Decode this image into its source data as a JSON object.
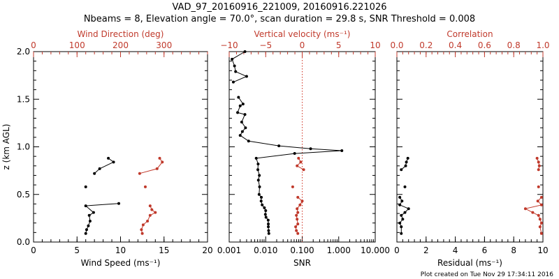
{
  "header": {
    "title": "VAD_97_20160916_221009, 20160916.221026",
    "subtitle": "Nbeams = 8, Elevation angle = 70.0°, scan duration = 29.8 s, SNR Threshold = 0.008"
  },
  "footer": "Plot created on Tue Nov 29 17:34:11 2016",
  "colors": {
    "black": "#000000",
    "red": "#c0392b",
    "dotted": "#d03020"
  },
  "chart_data": [
    {
      "type": "line",
      "title": "",
      "ylabel": "z (km AGL)",
      "ylim": [
        0.0,
        2.0
      ],
      "ytick_labels": [
        "0.0",
        "0.5",
        "1.0",
        "1.5",
        "2.0"
      ],
      "xlabel": "Wind Speed (ms⁻¹)",
      "xlim": [
        0,
        20
      ],
      "xtick_labels": [
        "0",
        "5",
        "10",
        "15",
        "20"
      ],
      "x2label": "Wind Direction (deg)",
      "x2lim": [
        0,
        400
      ],
      "x2tick_labels": [
        "0",
        "100",
        "200",
        "300"
      ],
      "series": [
        {
          "axis": "bottom",
          "color": "#000000",
          "points": [
            [
              8.6,
              0.88
            ],
            [
              9.2,
              0.84
            ],
            [
              7.6,
              0.77
            ],
            [
              7.0,
              0.72
            ],
            [
              6.0,
              0.58
            ],
            [
              9.8,
              0.405
            ],
            [
              6.0,
              0.38
            ],
            [
              6.9,
              0.31
            ],
            [
              6.4,
              0.28
            ],
            [
              6.5,
              0.22
            ],
            [
              6.3,
              0.17
            ],
            [
              6.1,
              0.13
            ],
            [
              6.0,
              0.09
            ]
          ],
          "isolated": [
            [
              6.0,
              0.58
            ]
          ]
        },
        {
          "axis": "top",
          "color": "#c0392b",
          "points": [
            [
              290,
              0.88
            ],
            [
              296,
              0.84
            ],
            [
              284,
              0.77
            ],
            [
              244,
              0.72
            ],
            [
              257,
              0.58
            ],
            [
              268,
              0.38
            ],
            [
              272,
              0.34
            ],
            [
              280,
              0.31
            ],
            [
              268,
              0.28
            ],
            [
              262,
              0.22
            ],
            [
              252,
              0.18
            ],
            [
              248,
              0.13
            ],
            [
              250,
              0.09
            ]
          ],
          "isolated": [
            [
              257,
              0.58
            ]
          ]
        }
      ]
    },
    {
      "type": "line",
      "title": "",
      "xlabel": "SNR",
      "xscale": "log",
      "xlim": [
        0.001,
        10.0
      ],
      "xtick_labels": [
        "0.001",
        "0.010",
        "0.100",
        "1.000",
        "10.000"
      ],
      "x2label": "Vertical velocity (ms⁻¹)",
      "x2lim": [
        -10,
        10
      ],
      "x2tick_labels": [
        "−10",
        "−5",
        "0",
        "5",
        "10"
      ],
      "series": [
        {
          "axis": "bottom",
          "color": "#000000",
          "points": [
            [
              0.0027,
              2.0
            ],
            [
              0.0012,
              1.92
            ],
            [
              0.0014,
              1.85
            ],
            [
              0.0015,
              1.79
            ],
            [
              0.003,
              1.74
            ],
            [
              0.0013,
              1.68
            ],
            [
              0.0018,
              1.52
            ],
            [
              0.0024,
              1.45
            ],
            [
              0.002,
              1.43
            ],
            [
              0.0017,
              1.36
            ],
            [
              0.0027,
              1.34
            ],
            [
              0.0022,
              1.26
            ],
            [
              0.0028,
              1.2
            ],
            [
              0.0023,
              1.16
            ],
            [
              0.002,
              1.12
            ],
            [
              0.0034,
              1.06
            ],
            [
              0.023,
              1.01
            ],
            [
              0.17,
              0.98
            ],
            [
              1.22,
              0.96
            ],
            [
              0.062,
              0.93
            ],
            [
              0.0055,
              0.88
            ],
            [
              0.0062,
              0.82
            ],
            [
              0.0061,
              0.76
            ],
            [
              0.0067,
              0.7
            ],
            [
              0.0063,
              0.65
            ],
            [
              0.0068,
              0.58
            ],
            [
              0.0066,
              0.5
            ],
            [
              0.0076,
              0.47
            ],
            [
              0.0075,
              0.43
            ],
            [
              0.008,
              0.39
            ],
            [
              0.0092,
              0.36
            ],
            [
              0.01,
              0.33
            ],
            [
              0.0098,
              0.29
            ],
            [
              0.0102,
              0.26
            ],
            [
              0.0117,
              0.23
            ],
            [
              0.0118,
              0.19
            ],
            [
              0.0118,
              0.16
            ],
            [
              0.012,
              0.12
            ],
            [
              0.0122,
              0.09
            ]
          ]
        },
        {
          "axis": "top",
          "color": "#c0392b",
          "points": [
            [
              -0.5,
              0.88
            ],
            [
              -0.2,
              0.84
            ],
            [
              -0.7,
              0.8
            ],
            [
              0.2,
              0.76
            ],
            [
              -1.3,
              0.58
            ],
            [
              -0.6,
              0.47
            ],
            [
              0.0,
              0.43
            ],
            [
              -0.3,
              0.39
            ],
            [
              -0.7,
              0.35
            ],
            [
              -0.6,
              0.31
            ],
            [
              -0.8,
              0.28
            ],
            [
              -0.7,
              0.24
            ],
            [
              -0.6,
              0.19
            ],
            [
              -0.9,
              0.16
            ],
            [
              -0.8,
              0.12
            ],
            [
              -0.6,
              0.09
            ]
          ],
          "isolated": [
            [
              -1.3,
              0.58
            ]
          ]
        }
      ],
      "reference_line": {
        "axis": "top",
        "x": 0,
        "style": "dotted"
      }
    },
    {
      "type": "line",
      "title": "",
      "xlabel": "Residual (ms⁻¹)",
      "xlim": [
        0,
        10
      ],
      "xtick_labels": [
        "0",
        "2",
        "4",
        "6",
        "8",
        "10"
      ],
      "x2label": "Correlation",
      "x2lim": [
        0.0,
        1.0
      ],
      "x2tick_labels": [
        "0.0",
        "0.2",
        "0.4",
        "0.6",
        "0.8",
        "1.0"
      ],
      "series": [
        {
          "axis": "bottom",
          "color": "#000000",
          "points": [
            [
              0.75,
              0.88
            ],
            [
              0.65,
              0.84
            ],
            [
              0.6,
              0.8
            ],
            [
              0.3,
              0.76
            ],
            [
              0.55,
              0.58
            ],
            [
              0.2,
              0.47
            ],
            [
              0.35,
              0.43
            ],
            [
              0.2,
              0.39
            ],
            [
              0.8,
              0.35
            ],
            [
              0.55,
              0.31
            ],
            [
              0.3,
              0.28
            ],
            [
              0.4,
              0.24
            ],
            [
              0.2,
              0.2
            ],
            [
              0.3,
              0.16
            ],
            [
              0.3,
              0.09
            ]
          ],
          "isolated": [
            [
              0.55,
              0.58
            ]
          ]
        },
        {
          "axis": "top",
          "color": "#c0392b",
          "points": [
            [
              0.96,
              0.88
            ],
            [
              0.97,
              0.84
            ],
            [
              0.975,
              0.8
            ],
            [
              0.97,
              0.76
            ],
            [
              0.97,
              0.58
            ],
            [
              0.99,
              0.47
            ],
            [
              0.965,
              0.43
            ],
            [
              0.99,
              0.39
            ],
            [
              0.88,
              0.35
            ],
            [
              0.93,
              0.31
            ],
            [
              0.97,
              0.28
            ],
            [
              0.98,
              0.24
            ],
            [
              0.99,
              0.2
            ],
            [
              0.98,
              0.16
            ],
            [
              0.99,
              0.09
            ]
          ],
          "isolated": [
            [
              0.97,
              0.58
            ]
          ]
        }
      ]
    }
  ]
}
